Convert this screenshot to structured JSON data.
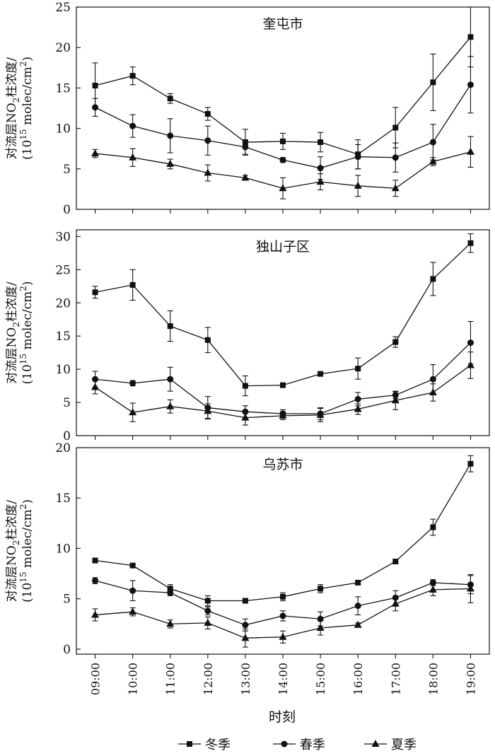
{
  "x_axis_label": "时刻",
  "y_axis_label_line1": "对流层NO2柱浓度/",
  "y_axis_label_line2": "(1015 molec/cm2)",
  "legend": [
    {
      "label": "冬季",
      "marker": "square"
    },
    {
      "label": "春季",
      "marker": "circle"
    },
    {
      "label": "夏季",
      "marker": "triangle"
    }
  ],
  "chart_data": [
    {
      "type": "line",
      "title": "奎屯市",
      "xlabel": "时刻",
      "ylabel": "对流层NO2柱浓度/(1015 molec/cm2)",
      "categories": [
        "09:00",
        "10:00",
        "11:00",
        "12:00",
        "13:00",
        "14:00",
        "15:00",
        "16:00",
        "17:00",
        "18:00",
        "19:00"
      ],
      "ylim": [
        0,
        25
      ],
      "yticks": [
        0,
        5,
        10,
        15,
        20,
        25
      ],
      "series": [
        {
          "name": "冬季",
          "marker": "square",
          "values": [
            15.3,
            16.5,
            13.7,
            11.8,
            8.3,
            8.4,
            8.3,
            6.8,
            10.1,
            15.7,
            21.3
          ],
          "errors": [
            2.8,
            1.1,
            0.6,
            0.8,
            1.6,
            1.0,
            1.2,
            1.8,
            2.5,
            3.5,
            3.7
          ]
        },
        {
          "name": "春季",
          "marker": "circle",
          "values": [
            12.6,
            10.3,
            9.1,
            8.5,
            7.7,
            6.1,
            5.1,
            6.5,
            6.4,
            8.3,
            15.4
          ],
          "errors": [
            1.1,
            1.4,
            2.1,
            1.8,
            0.9,
            0.3,
            1.4,
            1.5,
            1.8,
            2.2,
            3.5
          ]
        },
        {
          "name": "夏季",
          "marker": "triangle",
          "values": [
            6.9,
            6.4,
            5.6,
            4.5,
            3.9,
            2.6,
            3.4,
            2.9,
            2.6,
            5.9,
            7.1
          ],
          "errors": [
            0.5,
            1.1,
            0.6,
            1.0,
            0.3,
            1.3,
            1.0,
            1.3,
            1.0,
            0.5,
            1.9
          ]
        }
      ]
    },
    {
      "type": "line",
      "title": "独山子区",
      "xlabel": "时刻",
      "ylabel": "对流层NO2柱浓度/(1015 molec/cm2)",
      "categories": [
        "09:00",
        "10:00",
        "11:00",
        "12:00",
        "13:00",
        "14:00",
        "15:00",
        "16:00",
        "17:00",
        "18:00",
        "19:00"
      ],
      "ylim": [
        0,
        31
      ],
      "yticks": [
        0,
        5,
        10,
        15,
        20,
        25,
        30
      ],
      "series": [
        {
          "name": "冬季",
          "marker": "square",
          "values": [
            21.6,
            22.7,
            16.5,
            14.4,
            7.5,
            7.6,
            9.3,
            10.1,
            14.1,
            23.6,
            29.0
          ],
          "errors": [
            0.9,
            2.3,
            2.3,
            1.9,
            1.5,
            0.3,
            0.3,
            1.6,
            0.8,
            2.5,
            1.4
          ]
        },
        {
          "name": "春季",
          "marker": "circle",
          "values": [
            8.5,
            7.9,
            8.5,
            4.2,
            3.6,
            3.3,
            3.3,
            5.5,
            6.1,
            8.5,
            14.0
          ],
          "errors": [
            1.2,
            0.4,
            1.8,
            1.7,
            0.9,
            0.6,
            0.9,
            1.0,
            0.5,
            2.2,
            3.2
          ]
        },
        {
          "name": "夏季",
          "marker": "triangle",
          "values": [
            7.3,
            3.5,
            4.4,
            3.7,
            2.7,
            3.0,
            3.1,
            4.0,
            5.3,
            6.5,
            10.6
          ],
          "errors": [
            1.0,
            1.4,
            1.0,
            1.1,
            1.1,
            0.6,
            1.0,
            0.8,
            1.4,
            1.3,
            2.0
          ]
        }
      ]
    },
    {
      "type": "line",
      "title": "乌苏市",
      "xlabel": "时刻",
      "ylabel": "对流层NO2柱浓度/(1015 molec/cm2)",
      "categories": [
        "09:00",
        "10:00",
        "11:00",
        "12:00",
        "13:00",
        "14:00",
        "15:00",
        "16:00",
        "17:00",
        "18:00",
        "19:00"
      ],
      "ylim": [
        -0.5,
        20
      ],
      "yticks": [
        0,
        5,
        10,
        15,
        20
      ],
      "series": [
        {
          "name": "冬季",
          "marker": "square",
          "values": [
            8.8,
            8.3,
            6.0,
            4.8,
            4.8,
            5.2,
            6.0,
            6.6,
            8.7,
            12.1,
            18.4
          ],
          "errors": [
            0.2,
            0.2,
            0.4,
            0.5,
            0.2,
            0.4,
            0.4,
            0.2,
            0.2,
            0.8,
            0.8
          ]
        },
        {
          "name": "春季",
          "marker": "circle",
          "values": [
            6.8,
            5.8,
            5.6,
            3.8,
            2.4,
            3.3,
            3.0,
            4.3,
            5.1,
            6.6,
            6.4
          ],
          "errors": [
            0.3,
            1.0,
            0.3,
            0.4,
            0.6,
            0.5,
            0.7,
            0.9,
            0.7,
            0.3,
            0.9
          ]
        },
        {
          "name": "夏季",
          "marker": "triangle",
          "values": [
            3.4,
            3.7,
            2.5,
            2.6,
            1.1,
            1.2,
            2.1,
            2.4,
            4.5,
            5.9,
            6.0
          ],
          "errors": [
            0.6,
            0.4,
            0.4,
            0.6,
            0.9,
            0.6,
            0.7,
            0.2,
            0.7,
            0.6,
            1.4
          ]
        }
      ]
    }
  ]
}
